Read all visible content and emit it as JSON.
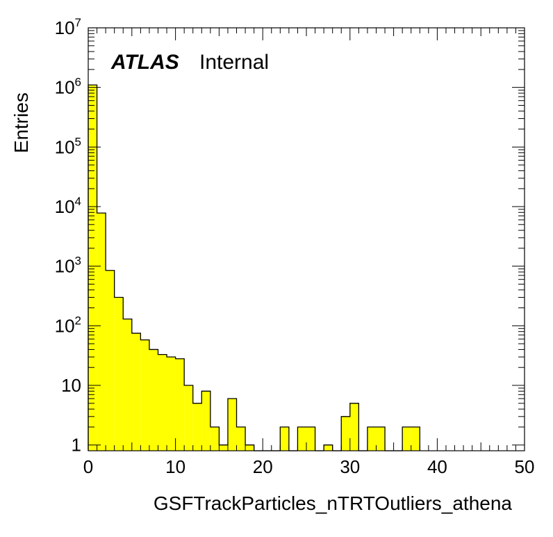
{
  "chart_data": {
    "type": "bar",
    "xlabel": "GSFTrackParticles_nTRTOutliers_athena",
    "ylabel": "Entries",
    "xlim": [
      0,
      50
    ],
    "ylim": [
      0.8,
      10000000
    ],
    "y_scale": "log",
    "bin_width": 1,
    "fill_color": "#ffff00",
    "line_color": "#000000",
    "grid": false,
    "x_ticks": [
      0,
      10,
      20,
      30,
      40,
      50
    ],
    "x_tick_labels": [
      "0",
      "10",
      "20",
      "30",
      "40",
      "50"
    ],
    "y_tick_labels": [
      {
        "value": 1,
        "base": "1",
        "exp": ""
      },
      {
        "value": 10,
        "base": "10",
        "exp": ""
      },
      {
        "value": 100,
        "base": "10",
        "exp": "2"
      },
      {
        "value": 1000,
        "base": "10",
        "exp": "3"
      },
      {
        "value": 10000,
        "base": "10",
        "exp": "4"
      },
      {
        "value": 100000,
        "base": "10",
        "exp": "5"
      },
      {
        "value": 1000000,
        "base": "10",
        "exp": "6"
      },
      {
        "value": 10000000,
        "base": "10",
        "exp": "7"
      }
    ],
    "bins": [
      {
        "x": 0,
        "value": 1100000
      },
      {
        "x": 1,
        "value": 7800
      },
      {
        "x": 2,
        "value": 850
      },
      {
        "x": 3,
        "value": 300
      },
      {
        "x": 4,
        "value": 130
      },
      {
        "x": 5,
        "value": 75
      },
      {
        "x": 6,
        "value": 58
      },
      {
        "x": 7,
        "value": 40
      },
      {
        "x": 8,
        "value": 33
      },
      {
        "x": 9,
        "value": 30
      },
      {
        "x": 10,
        "value": 28
      },
      {
        "x": 11,
        "value": 10
      },
      {
        "x": 12,
        "value": 5
      },
      {
        "x": 13,
        "value": 8
      },
      {
        "x": 14,
        "value": 2
      },
      {
        "x": 15,
        "value": 1
      },
      {
        "x": 16,
        "value": 6
      },
      {
        "x": 17,
        "value": 2
      },
      {
        "x": 18,
        "value": 1
      },
      {
        "x": 22,
        "value": 2
      },
      {
        "x": 24,
        "value": 2
      },
      {
        "x": 25,
        "value": 2
      },
      {
        "x": 27,
        "value": 1
      },
      {
        "x": 29,
        "value": 3
      },
      {
        "x": 30,
        "value": 5
      },
      {
        "x": 32,
        "value": 2
      },
      {
        "x": 33,
        "value": 2
      },
      {
        "x": 36,
        "value": 2
      },
      {
        "x": 37,
        "value": 2
      }
    ]
  },
  "labels": {
    "experiment": "ATLAS",
    "status": "Internal"
  }
}
